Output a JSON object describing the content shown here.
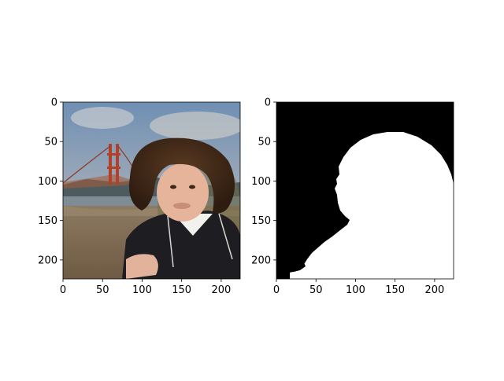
{
  "figure": {
    "background": "#ffffff"
  },
  "chart_data": [
    {
      "type": "image",
      "panel": "left",
      "content": "photograph",
      "xlim": [
        0,
        224
      ],
      "ylim": [
        224,
        0
      ],
      "xticks": [
        0,
        50,
        100,
        150,
        200
      ],
      "yticks": [
        0,
        50,
        100,
        150,
        200
      ],
      "title": "",
      "xlabel": "",
      "ylabel": ""
    },
    {
      "type": "image",
      "panel": "right",
      "content": "binary segmentation mask",
      "xlim": [
        0,
        224
      ],
      "ylim": [
        224,
        0
      ],
      "xticks": [
        0,
        50,
        100,
        150,
        200
      ],
      "yticks": [
        0,
        50,
        100,
        150,
        200
      ],
      "colors": {
        "background": "#000000",
        "foreground": "#ffffff"
      },
      "title": "",
      "xlabel": "",
      "ylabel": ""
    }
  ]
}
